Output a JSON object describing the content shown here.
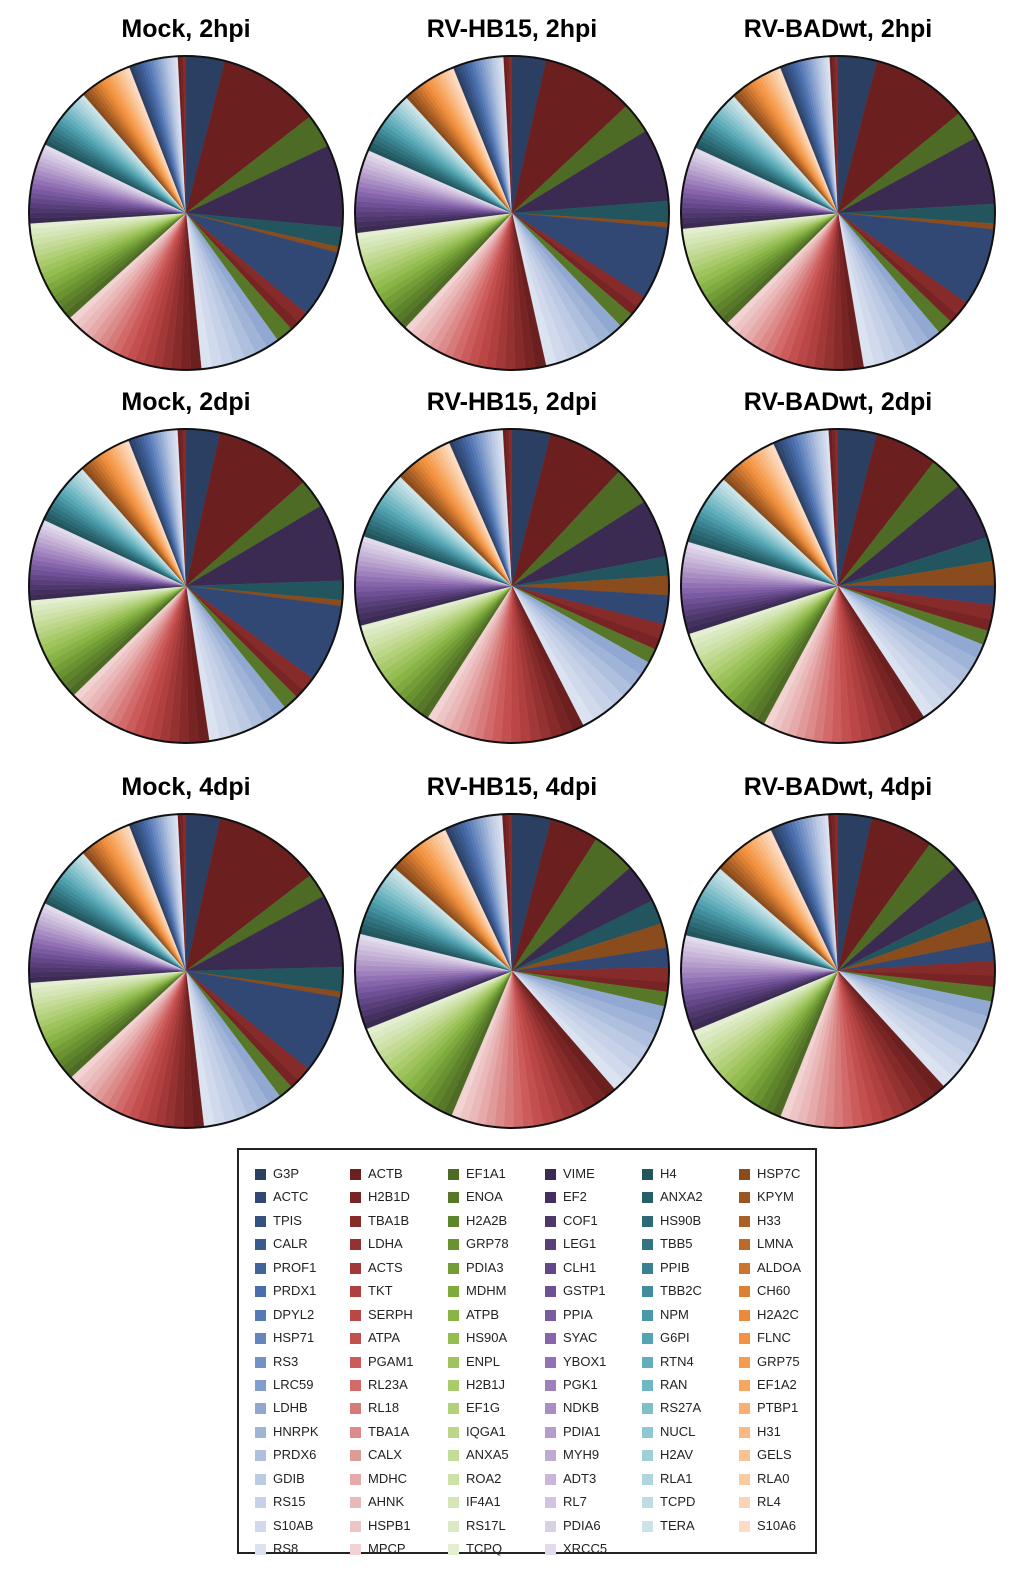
{
  "legend": {
    "items": [
      {
        "label": "G3P",
        "color": "#2b3f63"
      },
      {
        "label": "ACTC",
        "color": "#304873"
      },
      {
        "label": "TPIS",
        "color": "#345180"
      },
      {
        "label": "CALR",
        "color": "#3a5a8f"
      },
      {
        "label": "PROF1",
        "color": "#41649e"
      },
      {
        "label": "PRDX1",
        "color": "#4a6eab"
      },
      {
        "label": "DPYL2",
        "color": "#5679b5"
      },
      {
        "label": "HSP71",
        "color": "#6485bd"
      },
      {
        "label": "RS3",
        "color": "#7391c5"
      },
      {
        "label": "LRC59",
        "color": "#829dcb"
      },
      {
        "label": "LDHB",
        "color": "#91a9d2"
      },
      {
        "label": "HNRPK",
        "color": "#a0b4d8"
      },
      {
        "label": "PRDX6",
        "color": "#afc0de"
      },
      {
        "label": "GDIB",
        "color": "#bccae4"
      },
      {
        "label": "RS15",
        "color": "#c7d2e8"
      },
      {
        "label": "S10AB",
        "color": "#d1daec"
      },
      {
        "label": "RS8",
        "color": "#dbe2f0"
      },
      {
        "label": "ACTB",
        "color": "#6b1f1f"
      },
      {
        "label": "H2B1D",
        "color": "#782424"
      },
      {
        "label": "TBA1B",
        "color": "#862a2a"
      },
      {
        "label": "LDHA",
        "color": "#943131"
      },
      {
        "label": "ACTS",
        "color": "#a33838"
      },
      {
        "label": "TKT",
        "color": "#b03f3f"
      },
      {
        "label": "SERPH",
        "color": "#bb4646"
      },
      {
        "label": "ATPA",
        "color": "#c44f4f"
      },
      {
        "label": "PGAM1",
        "color": "#cc5b5b"
      },
      {
        "label": "RL23A",
        "color": "#d26a6a"
      },
      {
        "label": "RL18",
        "color": "#d77a7a"
      },
      {
        "label": "TBA1A",
        "color": "#dc8a8a"
      },
      {
        "label": "CALX",
        "color": "#e19a9a"
      },
      {
        "label": "MDHC",
        "color": "#e6aaaa"
      },
      {
        "label": "AHNK",
        "color": "#eab8b8"
      },
      {
        "label": "HSPB1",
        "color": "#eec5c5"
      },
      {
        "label": "MPCP",
        "color": "#f2d2d2"
      },
      {
        "label": "EF1A1",
        "color": "#4d6b24"
      },
      {
        "label": "ENOA",
        "color": "#567828"
      },
      {
        "label": "H2A2B",
        "color": "#5f852c"
      },
      {
        "label": "GRP78",
        "color": "#699231"
      },
      {
        "label": "PDIA3",
        "color": "#739e37"
      },
      {
        "label": "MDHM",
        "color": "#7eaa3e"
      },
      {
        "label": "ATPB",
        "color": "#89b447"
      },
      {
        "label": "HS90A",
        "color": "#94bd52"
      },
      {
        "label": "ENPL",
        "color": "#9fc45f"
      },
      {
        "label": "H2B1J",
        "color": "#a9cb6c"
      },
      {
        "label": "EF1G",
        "color": "#b3d17b"
      },
      {
        "label": "IQGA1",
        "color": "#bcd68a"
      },
      {
        "label": "ANXA5",
        "color": "#c5dc99"
      },
      {
        "label": "ROA2",
        "color": "#cde1a8"
      },
      {
        "label": "IF4A1",
        "color": "#d5e6b6"
      },
      {
        "label": "RS17L",
        "color": "#dceac3"
      },
      {
        "label": "TCPQ",
        "color": "#e3efd0"
      },
      {
        "label": "VIME",
        "color": "#3b2a52"
      },
      {
        "label": "EF2",
        "color": "#44305e"
      },
      {
        "label": "COF1",
        "color": "#4e376b"
      },
      {
        "label": "LEG1",
        "color": "#583f7a"
      },
      {
        "label": "CLH1",
        "color": "#634788"
      },
      {
        "label": "GSTP1",
        "color": "#6e5095"
      },
      {
        "label": "PPIA",
        "color": "#7a5aa1"
      },
      {
        "label": "SYAC",
        "color": "#8665ab"
      },
      {
        "label": "YBOX1",
        "color": "#9272b4"
      },
      {
        "label": "PGK1",
        "color": "#9e80bc"
      },
      {
        "label": "NDKB",
        "color": "#a98ec4"
      },
      {
        "label": "PDIA1",
        "color": "#b49ccb"
      },
      {
        "label": "MYH9",
        "color": "#bfaad2"
      },
      {
        "label": "ADT3",
        "color": "#c9b7d9"
      },
      {
        "label": "RL7",
        "color": "#d2c4e0"
      },
      {
        "label": "PDIA6",
        "color": "#dad0e6"
      },
      {
        "label": "XRCC5",
        "color": "#e2dbec"
      },
      {
        "label": "H4",
        "color": "#22555e"
      },
      {
        "label": "ANXA2",
        "color": "#275f69"
      },
      {
        "label": "HS90B",
        "color": "#2c6a75"
      },
      {
        "label": "TBB5",
        "color": "#327581"
      },
      {
        "label": "PPIB",
        "color": "#39818e"
      },
      {
        "label": "TBB2C",
        "color": "#418d9b"
      },
      {
        "label": "NPM",
        "color": "#4a99a7"
      },
      {
        "label": "G6PI",
        "color": "#55a4b2"
      },
      {
        "label": "RTN4",
        "color": "#62aebb"
      },
      {
        "label": "RAN",
        "color": "#71b7c3"
      },
      {
        "label": "RS27A",
        "color": "#80bfca"
      },
      {
        "label": "NUCL",
        "color": "#90c7d1"
      },
      {
        "label": "H2AV",
        "color": "#a0cfd7"
      },
      {
        "label": "RLA1",
        "color": "#afd6dd"
      },
      {
        "label": "TCPD",
        "color": "#bddde3"
      },
      {
        "label": "TERA",
        "color": "#cbe4e9"
      },
      {
        "label": "HSP7C",
        "color": "#8a4b1d"
      },
      {
        "label": "KPYM",
        "color": "#9a5520"
      },
      {
        "label": "H33",
        "color": "#aa5f24"
      },
      {
        "label": "LMNA",
        "color": "#bb6a29"
      },
      {
        "label": "ALDOA",
        "color": "#cc752e"
      },
      {
        "label": "CH60",
        "color": "#dc8034"
      },
      {
        "label": "H2A2C",
        "color": "#ea8a3a"
      },
      {
        "label": "FLNC",
        "color": "#f29443"
      },
      {
        "label": "GRP75",
        "color": "#f59c50"
      },
      {
        "label": "EF1A2",
        "color": "#f7a65f"
      },
      {
        "label": "PTBP1",
        "color": "#f8b070"
      },
      {
        "label": "H31",
        "color": "#f9b981"
      },
      {
        "label": "GELS",
        "color": "#fac292"
      },
      {
        "label": "RLA0",
        "color": "#fbcba3"
      },
      {
        "label": "RL4",
        "color": "#fcd4b3"
      },
      {
        "label": "S10A6",
        "color": "#fddcc3"
      }
    ]
  },
  "chart_data": [
    {
      "type": "pie",
      "title": "Mock, 2hpi",
      "slices": [
        {
          "label": "G3P",
          "value": 4.0
        },
        {
          "label": "ACTB",
          "value": 10.5
        },
        {
          "label": "EF1A1",
          "value": 3.5
        },
        {
          "label": "VIME",
          "value": 8.5
        },
        {
          "label": "H4",
          "value": 2.0
        },
        {
          "label": "HSP7C",
          "value": 0.6
        },
        {
          "label": "ACTC",
          "value": 7.0
        },
        {
          "label": "TBA1B",
          "value": 1.2
        },
        {
          "label": "H2B1D",
          "value": 1.0
        },
        {
          "label": "ENOA",
          "value": 1.8
        }
      ],
      "others_value": 60.0
    },
    {
      "type": "pie",
      "title": "RV-HB15, 2hpi",
      "slices": [
        {
          "label": "G3P",
          "value": 3.5
        },
        {
          "label": "ACTB",
          "value": 9.5
        },
        {
          "label": "EF1A1",
          "value": 3.2
        },
        {
          "label": "VIME",
          "value": 7.5
        },
        {
          "label": "H4",
          "value": 2.2
        },
        {
          "label": "HSP7C",
          "value": 0.5
        },
        {
          "label": "ACTC",
          "value": 7.5
        },
        {
          "label": "TBA1B",
          "value": 1.2
        },
        {
          "label": "H2B1D",
          "value": 1.0
        },
        {
          "label": "ENOA",
          "value": 1.6
        }
      ],
      "others_value": 62.0
    },
    {
      "type": "pie",
      "title": "RV-BADwt, 2hpi",
      "slices": [
        {
          "label": "G3P",
          "value": 4.0
        },
        {
          "label": "ACTB",
          "value": 10.0
        },
        {
          "label": "EF1A1",
          "value": 3.0
        },
        {
          "label": "VIME",
          "value": 7.0
        },
        {
          "label": "H4",
          "value": 2.0
        },
        {
          "label": "HSP7C",
          "value": 0.6
        },
        {
          "label": "ACTC",
          "value": 8.0
        },
        {
          "label": "TBA1B",
          "value": 1.5
        },
        {
          "label": "H2B1D",
          "value": 1.0
        },
        {
          "label": "ENOA",
          "value": 1.6
        }
      ],
      "others_value": 61.0
    },
    {
      "type": "pie",
      "title": "Mock, 2dpi",
      "slices": [
        {
          "label": "G3P",
          "value": 3.5
        },
        {
          "label": "ACTB",
          "value": 10.0
        },
        {
          "label": "EF1A1",
          "value": 3.0
        },
        {
          "label": "VIME",
          "value": 8.0
        },
        {
          "label": "H4",
          "value": 2.0
        },
        {
          "label": "HSP7C",
          "value": 0.6
        },
        {
          "label": "ACTC",
          "value": 8.0
        },
        {
          "label": "TBA1B",
          "value": 1.5
        },
        {
          "label": "H2B1D",
          "value": 1.0
        },
        {
          "label": "ENOA",
          "value": 1.6
        }
      ],
      "others_value": 61.0
    },
    {
      "type": "pie",
      "title": "RV-HB15, 2dpi",
      "slices": [
        {
          "label": "G3P",
          "value": 4.0
        },
        {
          "label": "ACTB",
          "value": 8.0
        },
        {
          "label": "EF1A1",
          "value": 4.0
        },
        {
          "label": "VIME",
          "value": 6.0
        },
        {
          "label": "H4",
          "value": 2.0
        },
        {
          "label": "HSP7C",
          "value": 2.0
        },
        {
          "label": "ACTC",
          "value": 3.0
        },
        {
          "label": "TBA1B",
          "value": 1.5
        },
        {
          "label": "H2B1D",
          "value": 1.2
        },
        {
          "label": "ENOA",
          "value": 1.5
        }
      ],
      "others_value": 67.0
    },
    {
      "type": "pie",
      "title": "RV-BADwt, 2dpi",
      "slices": [
        {
          "label": "G3P",
          "value": 4.0
        },
        {
          "label": "ACTB",
          "value": 6.5
        },
        {
          "label": "EF1A1",
          "value": 3.5
        },
        {
          "label": "VIME",
          "value": 6.0
        },
        {
          "label": "H4",
          "value": 2.5
        },
        {
          "label": "HSP7C",
          "value": 2.5
        },
        {
          "label": "ACTC",
          "value": 2.0
        },
        {
          "label": "TBA1B",
          "value": 1.5
        },
        {
          "label": "H2B1D",
          "value": 1.2
        },
        {
          "label": "ENOA",
          "value": 1.5
        }
      ],
      "others_value": 69.0
    },
    {
      "type": "pie",
      "title": "Mock, 4dpi",
      "slices": [
        {
          "label": "G3P",
          "value": 3.5
        },
        {
          "label": "ACTB",
          "value": 11.0
        },
        {
          "label": "EF1A1",
          "value": 2.5
        },
        {
          "label": "VIME",
          "value": 7.5
        },
        {
          "label": "H4",
          "value": 2.5
        },
        {
          "label": "HSP7C",
          "value": 0.6
        },
        {
          "label": "ACTC",
          "value": 8.0
        },
        {
          "label": "TBA1B",
          "value": 1.5
        },
        {
          "label": "H2B1D",
          "value": 1.0
        },
        {
          "label": "ENOA",
          "value": 1.5
        }
      ],
      "others_value": 60.0
    },
    {
      "type": "pie",
      "title": "RV-HB15, 4dpi",
      "slices": [
        {
          "label": "G3P",
          "value": 4.0
        },
        {
          "label": "ACTB",
          "value": 5.0
        },
        {
          "label": "EF1A1",
          "value": 4.5
        },
        {
          "label": "VIME",
          "value": 4.0
        },
        {
          "label": "H4",
          "value": 2.5
        },
        {
          "label": "HSP7C",
          "value": 2.5
        },
        {
          "label": "ACTC",
          "value": 2.0
        },
        {
          "label": "TBA1B",
          "value": 1.5
        },
        {
          "label": "H2B1D",
          "value": 1.0
        },
        {
          "label": "ENOA",
          "value": 1.5
        }
      ],
      "others_value": 71.0
    },
    {
      "type": "pie",
      "title": "RV-BADwt, 4dpi",
      "slices": [
        {
          "label": "G3P",
          "value": 3.5
        },
        {
          "label": "ACTB",
          "value": 6.5
        },
        {
          "label": "EF1A1",
          "value": 3.5
        },
        {
          "label": "VIME",
          "value": 4.0
        },
        {
          "label": "H4",
          "value": 2.0
        },
        {
          "label": "HSP7C",
          "value": 2.5
        },
        {
          "label": "ACTC",
          "value": 2.0
        },
        {
          "label": "TBA1B",
          "value": 1.5
        },
        {
          "label": "H2B1D",
          "value": 1.2
        },
        {
          "label": "ENOA",
          "value": 1.5
        }
      ],
      "others_value": 72.0
    }
  ]
}
